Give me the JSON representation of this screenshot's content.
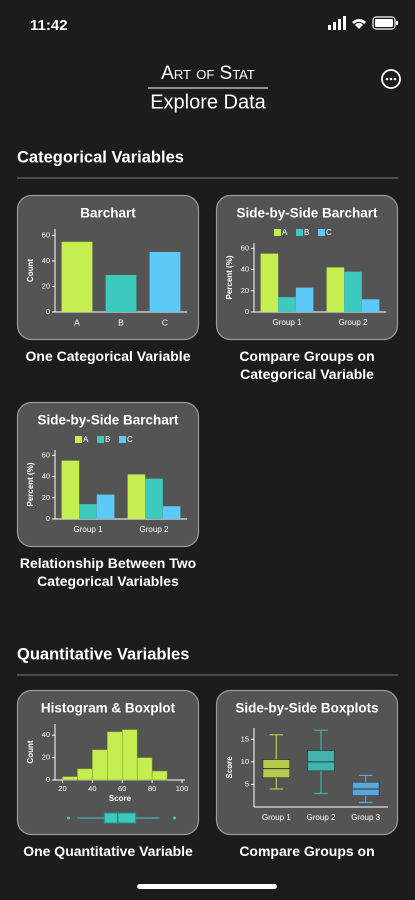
{
  "status": {
    "time": "11:42"
  },
  "header": {
    "brand": "Art of Stat",
    "title": "Explore Data"
  },
  "sections": [
    {
      "title": "Categorical Variables",
      "cards": [
        {
          "title": "Barchart",
          "caption": "One Categorical Variable",
          "chart": {
            "type": "bar",
            "ylabel": "Count",
            "categories": [
              "A",
              "B",
              "C"
            ],
            "values": [
              55,
              29,
              47
            ],
            "colors": [
              "#c5ee50",
              "#3ec9bf",
              "#5cc9f6"
            ],
            "ylim": [
              0,
              65
            ],
            "yticks": [
              0,
              20,
              40,
              60
            ]
          }
        },
        {
          "title": "Side-by-Side Barchart",
          "caption": "Compare Groups on Categorical Variable",
          "chart": {
            "type": "grouped",
            "ylabel": "Percent (%)",
            "categories": [
              "Group 1",
              "Group 2"
            ],
            "series": [
              {
                "name": "A",
                "color": "#c5ee50",
                "values": [
                  55,
                  42
                ]
              },
              {
                "name": "B",
                "color": "#3ec9bf",
                "values": [
                  14,
                  38
                ]
              },
              {
                "name": "C",
                "color": "#5cc9f6",
                "values": [
                  23,
                  12
                ]
              }
            ],
            "ylim": [
              0,
              65
            ],
            "yticks": [
              0,
              20,
              40,
              60
            ]
          }
        },
        {
          "title": "Side-by-Side Barchart",
          "caption": "Relationship Between Two Categorical Variables",
          "chart": {
            "type": "grouped",
            "ylabel": "Percent (%)",
            "categories": [
              "Group 1",
              "Group 2"
            ],
            "series": [
              {
                "name": "A",
                "color": "#c5ee50",
                "values": [
                  55,
                  42
                ]
              },
              {
                "name": "B",
                "color": "#3ec9bf",
                "values": [
                  14,
                  38
                ]
              },
              {
                "name": "C",
                "color": "#5cc9f6",
                "values": [
                  23,
                  12
                ]
              }
            ],
            "ylim": [
              0,
              65
            ],
            "yticks": [
              0,
              20,
              40,
              60
            ]
          }
        }
      ]
    },
    {
      "title": "Quantitative Variables",
      "cards": [
        {
          "title": "Histogram & Boxplot",
          "caption": "One Quantitative Variable",
          "chart": {
            "type": "histogram",
            "xlabel": "Score",
            "ylabel": "Count",
            "color": "#c5ee50",
            "box_color": "#3ec9bf",
            "bins": [
              20,
              30,
              40,
              50,
              60,
              70,
              80,
              90
            ],
            "counts": [
              3,
              10,
              27,
              43,
              45,
              20,
              8
            ],
            "xlim": [
              15,
              102
            ],
            "xticks": [
              20,
              40,
              60,
              80,
              100
            ],
            "ylim": [
              0,
              50
            ],
            "yticks": [
              0,
              20,
              40
            ],
            "box": {
              "min": 30,
              "q1": 48,
              "median": 57,
              "q3": 69,
              "max": 85,
              "outliers": [
                24,
                95
              ]
            }
          }
        },
        {
          "title": "Side-by-Side Boxplots",
          "caption": "Compare Groups on",
          "chart": {
            "type": "boxplot",
            "ylabel": "Score",
            "categories": [
              "Group 1",
              "Group 2",
              "Group 3"
            ],
            "colors": [
              "#b7c94c",
              "#3fb4b0",
              "#5aa7d9"
            ],
            "boxes": [
              {
                "min": 4,
                "q1": 6.5,
                "median": 8.5,
                "q3": 10.5,
                "max": 16
              },
              {
                "min": 3,
                "q1": 8,
                "median": 10,
                "q3": 12.5,
                "max": 17
              },
              {
                "min": 1,
                "q1": 2.5,
                "median": 4,
                "q3": 5.5,
                "max": 7
              }
            ],
            "ylim": [
              0,
              17.5
            ],
            "yticks": [
              5,
              10,
              15
            ]
          }
        }
      ]
    }
  ]
}
